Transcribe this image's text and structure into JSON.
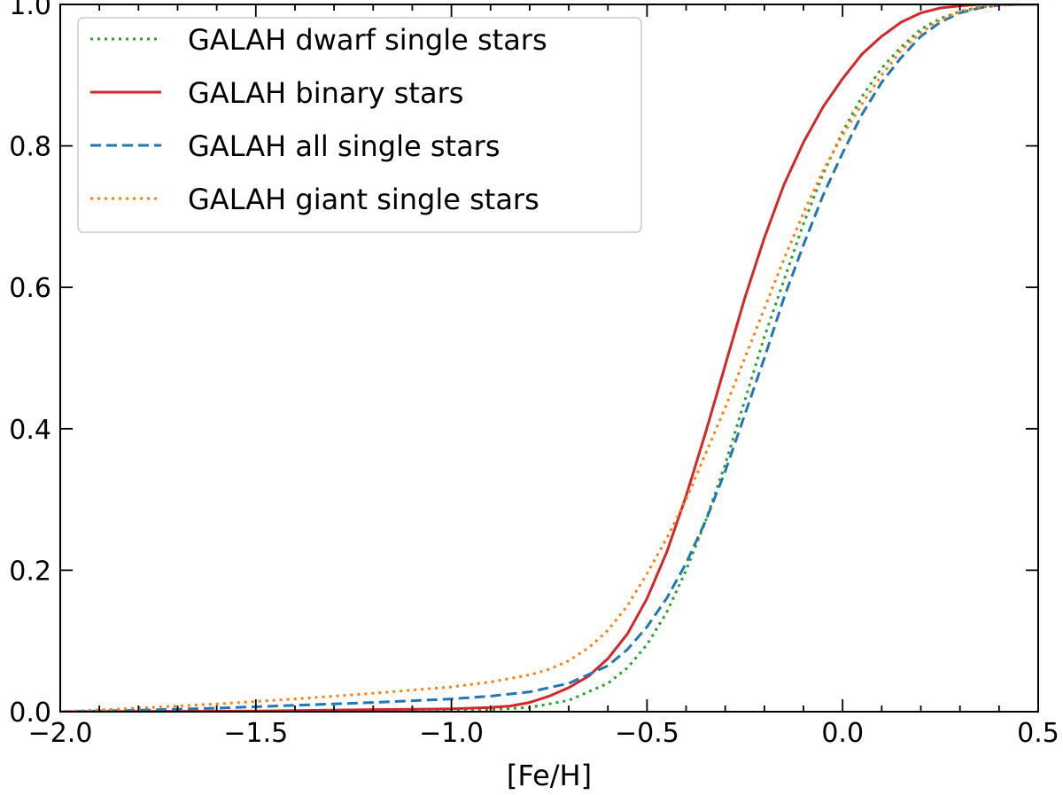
{
  "chart_data": {
    "type": "line",
    "title": "",
    "xlabel": "[Fe/H]",
    "ylabel": "",
    "xlim": [
      -2.0,
      0.5
    ],
    "ylim": [
      0.0,
      1.0
    ],
    "xticks": [
      -2.0,
      -1.5,
      -1.0,
      -0.5,
      0.0,
      0.5
    ],
    "xtick_labels": [
      "−2.0",
      "−1.5",
      "−1.0",
      "−0.5",
      "0.0",
      "0.5"
    ],
    "yticks": [
      0.0,
      0.2,
      0.4,
      0.6,
      0.8,
      1.0
    ],
    "ytick_labels": [
      "0.0",
      "0.2",
      "0.4",
      "0.6",
      "0.8",
      "1.0"
    ],
    "grid": false,
    "legend_position": "top-left",
    "series": [
      {
        "name": "GALAH dwarf single stars",
        "color": "#2ca02c",
        "style": "dotted",
        "x": [
          -2.0,
          -1.5,
          -1.2,
          -1.0,
          -0.9,
          -0.8,
          -0.7,
          -0.6,
          -0.55,
          -0.5,
          -0.45,
          -0.4,
          -0.35,
          -0.3,
          -0.25,
          -0.2,
          -0.15,
          -0.1,
          -0.05,
          0.0,
          0.05,
          0.1,
          0.15,
          0.2,
          0.25,
          0.3,
          0.35,
          0.4,
          0.45,
          0.5
        ],
        "y": [
          0.0,
          0.0,
          0.001,
          0.002,
          0.003,
          0.006,
          0.016,
          0.04,
          0.062,
          0.095,
          0.14,
          0.2,
          0.27,
          0.35,
          0.44,
          0.53,
          0.61,
          0.69,
          0.76,
          0.82,
          0.87,
          0.91,
          0.94,
          0.965,
          0.98,
          0.99,
          0.996,
          0.999,
          1.0,
          1.0
        ]
      },
      {
        "name": "GALAH binary stars",
        "color": "#d62728",
        "style": "solid",
        "x": [
          -2.0,
          -1.5,
          -1.2,
          -1.0,
          -0.9,
          -0.85,
          -0.8,
          -0.75,
          -0.7,
          -0.65,
          -0.6,
          -0.55,
          -0.5,
          -0.45,
          -0.4,
          -0.35,
          -0.3,
          -0.25,
          -0.2,
          -0.15,
          -0.1,
          -0.05,
          0.0,
          0.05,
          0.1,
          0.15,
          0.2,
          0.25,
          0.3,
          0.35,
          0.4,
          0.5
        ],
        "y": [
          0.0,
          0.001,
          0.003,
          0.004,
          0.006,
          0.008,
          0.013,
          0.022,
          0.034,
          0.05,
          0.075,
          0.11,
          0.16,
          0.225,
          0.305,
          0.395,
          0.49,
          0.585,
          0.67,
          0.745,
          0.805,
          0.855,
          0.895,
          0.93,
          0.955,
          0.975,
          0.988,
          0.995,
          0.998,
          1.0,
          1.0,
          1.0
        ]
      },
      {
        "name": "GALAH all single stars",
        "color": "#1f77b4",
        "style": "dashed",
        "x": [
          -2.0,
          -1.8,
          -1.6,
          -1.4,
          -1.2,
          -1.0,
          -0.9,
          -0.8,
          -0.7,
          -0.6,
          -0.55,
          -0.5,
          -0.45,
          -0.4,
          -0.35,
          -0.3,
          -0.25,
          -0.2,
          -0.15,
          -0.1,
          -0.05,
          0.0,
          0.05,
          0.1,
          0.15,
          0.2,
          0.25,
          0.3,
          0.35,
          0.4,
          0.45,
          0.5
        ],
        "y": [
          0.0,
          0.002,
          0.005,
          0.009,
          0.013,
          0.018,
          0.022,
          0.028,
          0.04,
          0.065,
          0.088,
          0.12,
          0.16,
          0.21,
          0.27,
          0.34,
          0.42,
          0.5,
          0.585,
          0.66,
          0.73,
          0.79,
          0.845,
          0.89,
          0.925,
          0.955,
          0.975,
          0.988,
          0.995,
          0.999,
          1.0,
          1.0
        ]
      },
      {
        "name": "GALAH giant single stars",
        "color": "#ff7f0e",
        "style": "dotted",
        "x": [
          -2.0,
          -1.8,
          -1.6,
          -1.4,
          -1.2,
          -1.0,
          -0.9,
          -0.8,
          -0.75,
          -0.7,
          -0.65,
          -0.6,
          -0.55,
          -0.5,
          -0.45,
          -0.4,
          -0.35,
          -0.3,
          -0.25,
          -0.2,
          -0.15,
          -0.1,
          -0.05,
          0.0,
          0.05,
          0.1,
          0.15,
          0.2,
          0.25,
          0.3,
          0.35,
          0.4,
          0.5
        ],
        "y": [
          0.0,
          0.005,
          0.011,
          0.018,
          0.026,
          0.035,
          0.042,
          0.052,
          0.06,
          0.072,
          0.09,
          0.115,
          0.15,
          0.195,
          0.245,
          0.3,
          0.365,
          0.43,
          0.5,
          0.57,
          0.64,
          0.705,
          0.765,
          0.815,
          0.86,
          0.9,
          0.935,
          0.96,
          0.978,
          0.99,
          0.996,
          0.999,
          1.0
        ]
      }
    ]
  }
}
